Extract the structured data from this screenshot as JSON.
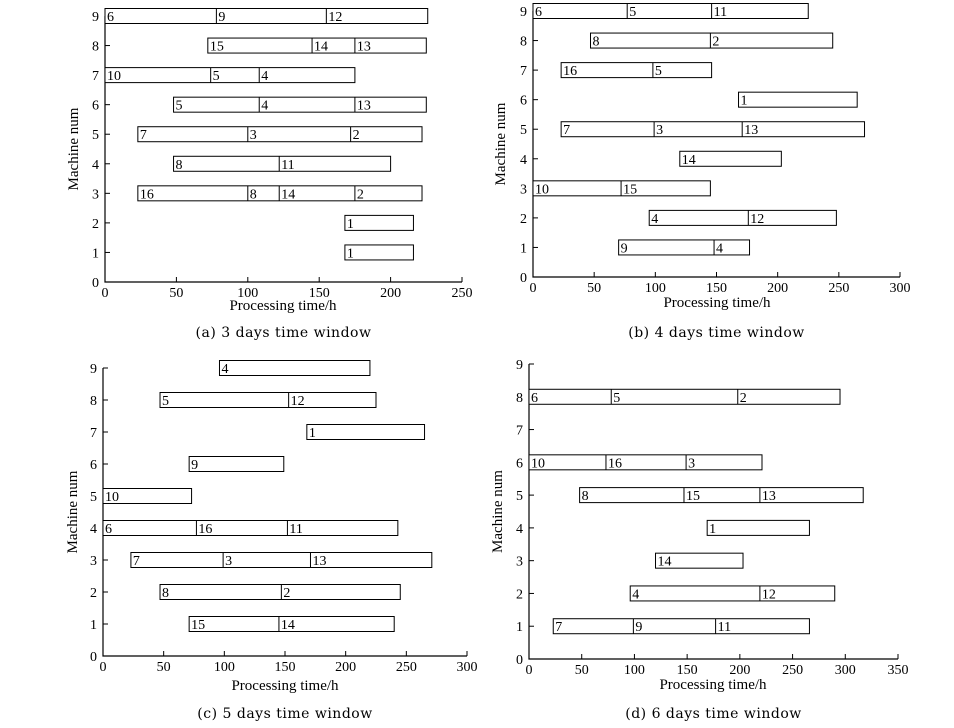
{
  "figure": {
    "chart_data": [
      {
        "type": "gantt",
        "caption": "(a) 3 days time window",
        "xlabel": "Processing time/h",
        "ylabel": "Machine num",
        "xlim": [
          0,
          250
        ],
        "xticks": [
          0,
          50,
          100,
          150,
          200,
          250
        ],
        "ylim": [
          0,
          9
        ],
        "yticks": [
          0,
          1,
          2,
          3,
          4,
          5,
          6,
          7,
          8,
          9
        ],
        "machines": [
          {
            "machine": 9,
            "segments": [
              {
                "job": "6",
                "start": 0,
                "end": 78
              },
              {
                "job": "9",
                "start": 78,
                "end": 155
              },
              {
                "job": "12",
                "start": 155,
                "end": 226
              }
            ]
          },
          {
            "machine": 8,
            "segments": [
              {
                "job": "15",
                "start": 72,
                "end": 145
              },
              {
                "job": "14",
                "start": 145,
                "end": 175
              },
              {
                "job": "13",
                "start": 175,
                "end": 225
              }
            ]
          },
          {
            "machine": 7,
            "segments": [
              {
                "job": "10",
                "start": 0,
                "end": 74
              },
              {
                "job": "5",
                "start": 74,
                "end": 108
              },
              {
                "job": "4",
                "start": 108,
                "end": 175
              }
            ]
          },
          {
            "machine": 6,
            "segments": [
              {
                "job": "5",
                "start": 48,
                "end": 108
              },
              {
                "job": "4",
                "start": 108,
                "end": 175
              },
              {
                "job": "13",
                "start": 175,
                "end": 225
              }
            ]
          },
          {
            "machine": 5,
            "segments": [
              {
                "job": "7",
                "start": 23,
                "end": 100
              },
              {
                "job": "3",
                "start": 100,
                "end": 172
              },
              {
                "job": "2",
                "start": 172,
                "end": 222
              }
            ]
          },
          {
            "machine": 4,
            "segments": [
              {
                "job": "8",
                "start": 48,
                "end": 122
              },
              {
                "job": "11",
                "start": 122,
                "end": 200
              }
            ]
          },
          {
            "machine": 3,
            "segments": [
              {
                "job": "16",
                "start": 23,
                "end": 100
              },
              {
                "job": "8",
                "start": 100,
                "end": 122
              },
              {
                "job": "14",
                "start": 122,
                "end": 175
              },
              {
                "job": "2",
                "start": 175,
                "end": 222
              }
            ]
          },
          {
            "machine": 2,
            "segments": [
              {
                "job": "1",
                "start": 168,
                "end": 216
              }
            ]
          },
          {
            "machine": 1,
            "segments": [
              {
                "job": "1",
                "start": 168,
                "end": 216
              }
            ]
          }
        ]
      },
      {
        "type": "gantt",
        "caption": "(b) 4 days time window",
        "xlabel": "Processing time/h",
        "ylabel": "Machine num",
        "xlim": [
          0,
          300
        ],
        "xticks": [
          0,
          50,
          100,
          150,
          200,
          250,
          300
        ],
        "ylim": [
          0,
          9
        ],
        "yticks": [
          0,
          1,
          2,
          3,
          4,
          5,
          6,
          7,
          8,
          9
        ],
        "machines": [
          {
            "machine": 9,
            "segments": [
              {
                "job": "6",
                "start": 0,
                "end": 77
              },
              {
                "job": "5",
                "start": 77,
                "end": 146
              },
              {
                "job": "11",
                "start": 146,
                "end": 225
              }
            ]
          },
          {
            "machine": 8,
            "segments": [
              {
                "job": "8",
                "start": 47,
                "end": 145
              },
              {
                "job": "2",
                "start": 145,
                "end": 245
              }
            ]
          },
          {
            "machine": 7,
            "segments": [
              {
                "job": "16",
                "start": 23,
                "end": 98
              },
              {
                "job": "5",
                "start": 98,
                "end": 146
              }
            ]
          },
          {
            "machine": 6,
            "segments": [
              {
                "job": "1",
                "start": 168,
                "end": 265
              }
            ]
          },
          {
            "machine": 5,
            "segments": [
              {
                "job": "7",
                "start": 23,
                "end": 99
              },
              {
                "job": "3",
                "start": 99,
                "end": 171
              },
              {
                "job": "13",
                "start": 171,
                "end": 271
              }
            ]
          },
          {
            "machine": 4,
            "segments": [
              {
                "job": "14",
                "start": 120,
                "end": 203
              }
            ]
          },
          {
            "machine": 3,
            "segments": [
              {
                "job": "10",
                "start": 0,
                "end": 72
              },
              {
                "job": "15",
                "start": 72,
                "end": 145
              }
            ]
          },
          {
            "machine": 2,
            "segments": [
              {
                "job": "4",
                "start": 95,
                "end": 176
              },
              {
                "job": "12",
                "start": 176,
                "end": 248
              }
            ]
          },
          {
            "machine": 1,
            "segments": [
              {
                "job": "9",
                "start": 70,
                "end": 148
              },
              {
                "job": "4",
                "start": 148,
                "end": 177
              }
            ]
          }
        ]
      },
      {
        "type": "gantt",
        "caption": "(c) 5 days time window",
        "xlabel": "Processing time/h",
        "ylabel": "Machine num",
        "xlim": [
          0,
          300
        ],
        "xticks": [
          0,
          50,
          100,
          150,
          200,
          250,
          300
        ],
        "ylim": [
          0,
          9
        ],
        "yticks": [
          0,
          1,
          2,
          3,
          4,
          5,
          6,
          7,
          8,
          9
        ],
        "machines": [
          {
            "machine": 9,
            "segments": [
              {
                "job": "4",
                "start": 96,
                "end": 220
              }
            ]
          },
          {
            "machine": 8,
            "segments": [
              {
                "job": "5",
                "start": 47,
                "end": 153
              },
              {
                "job": "12",
                "start": 153,
                "end": 225
              }
            ]
          },
          {
            "machine": 7,
            "segments": [
              {
                "job": "1",
                "start": 168,
                "end": 265
              }
            ]
          },
          {
            "machine": 6,
            "segments": [
              {
                "job": "9",
                "start": 71,
                "end": 149
              }
            ]
          },
          {
            "machine": 5,
            "segments": [
              {
                "job": "10",
                "start": 0,
                "end": 73
              }
            ]
          },
          {
            "machine": 4,
            "segments": [
              {
                "job": "6",
                "start": 0,
                "end": 77
              },
              {
                "job": "16",
                "start": 77,
                "end": 152
              },
              {
                "job": "11",
                "start": 152,
                "end": 243
              }
            ]
          },
          {
            "machine": 3,
            "segments": [
              {
                "job": "7",
                "start": 23,
                "end": 99
              },
              {
                "job": "3",
                "start": 99,
                "end": 171
              },
              {
                "job": "13",
                "start": 171,
                "end": 271
              }
            ]
          },
          {
            "machine": 2,
            "segments": [
              {
                "job": "8",
                "start": 47,
                "end": 147
              },
              {
                "job": "2",
                "start": 147,
                "end": 245
              }
            ]
          },
          {
            "machine": 1,
            "segments": [
              {
                "job": "15",
                "start": 71,
                "end": 145
              },
              {
                "job": "14",
                "start": 145,
                "end": 240
              }
            ]
          }
        ]
      },
      {
        "type": "gantt",
        "caption": "(d) 6 days time window",
        "xlabel": "Processing time/h",
        "ylabel": "Machine num",
        "xlim": [
          0,
          350
        ],
        "xticks": [
          0,
          50,
          100,
          150,
          200,
          250,
          300,
          350
        ],
        "ylim": [
          0,
          9
        ],
        "yticks": [
          0,
          1,
          2,
          3,
          4,
          5,
          6,
          7,
          8,
          9
        ],
        "machines": [
          {
            "machine": 8,
            "segments": [
              {
                "job": "6",
                "start": 0,
                "end": 78
              },
              {
                "job": "5",
                "start": 78,
                "end": 198
              },
              {
                "job": "2",
                "start": 198,
                "end": 295
              }
            ]
          },
          {
            "machine": 6,
            "segments": [
              {
                "job": "10",
                "start": 0,
                "end": 73
              },
              {
                "job": "16",
                "start": 73,
                "end": 149
              },
              {
                "job": "3",
                "start": 149,
                "end": 221
              }
            ]
          },
          {
            "machine": 5,
            "segments": [
              {
                "job": "8",
                "start": 48,
                "end": 147
              },
              {
                "job": "15",
                "start": 147,
                "end": 219
              },
              {
                "job": "13",
                "start": 219,
                "end": 317
              }
            ]
          },
          {
            "machine": 4,
            "segments": [
              {
                "job": "1",
                "start": 169,
                "end": 266
              }
            ]
          },
          {
            "machine": 3,
            "segments": [
              {
                "job": "14",
                "start": 120,
                "end": 203
              }
            ]
          },
          {
            "machine": 2,
            "segments": [
              {
                "job": "4",
                "start": 96,
                "end": 219
              },
              {
                "job": "12",
                "start": 219,
                "end": 290
              }
            ]
          },
          {
            "machine": 1,
            "segments": [
              {
                "job": "7",
                "start": 23,
                "end": 99
              },
              {
                "job": "9",
                "start": 99,
                "end": 177
              },
              {
                "job": "11",
                "start": 177,
                "end": 266
              }
            ]
          }
        ]
      }
    ]
  }
}
